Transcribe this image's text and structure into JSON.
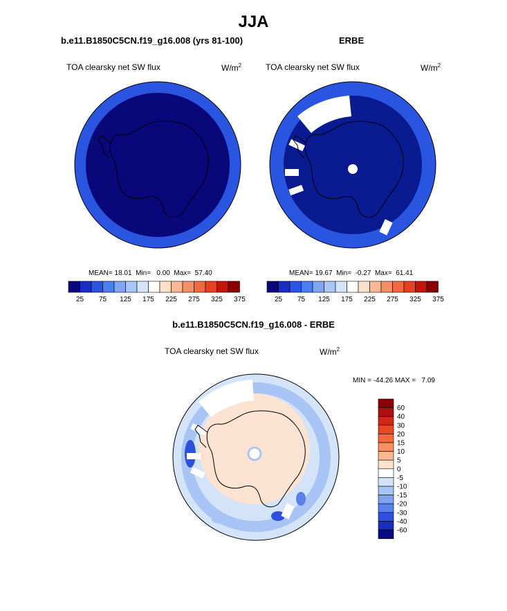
{
  "season": "JJA",
  "panel_left": {
    "case_title": "b.e11.B1850C5CN.f19_g16.008 (yrs 81-100)",
    "variable": "TOA clearsky net SW flux",
    "units_base": "W/m",
    "units_exp": "2",
    "stats": "MEAN= 18.01  Min=   0.00  Max=  57.40"
  },
  "panel_right": {
    "case_title": "ERBE",
    "variable": "TOA clearsky net SW flux",
    "units_base": "W/m",
    "units_exp": "2",
    "stats": "MEAN= 19.67  Min=  -0.27  Max=  61.41"
  },
  "panel_diff": {
    "case_title": "b.e11.B1850C5CN.f19_g16.008 - ERBE",
    "variable": "TOA clearsky net SW flux",
    "units_base": "W/m",
    "units_exp": "2",
    "stats": "MIN = -44.26 MAX =   7.09"
  },
  "colorbar_horizontal": {
    "colors": [
      "#08087a",
      "#1a2fc2",
      "#2a55e0",
      "#4a7ff0",
      "#7ea6f2",
      "#aac6f4",
      "#d4e4f8",
      "#ffffff",
      "#fde0c8",
      "#f8b898",
      "#f49068",
      "#ef6a40",
      "#e64020",
      "#c01808",
      "#8a0000"
    ],
    "labels": [
      "25",
      "75",
      "125",
      "175",
      "225",
      "275",
      "325",
      "375"
    ]
  },
  "colorbar_vertical": {
    "colors_top_to_bottom": [
      "#8a0000",
      "#b01010",
      "#d02818",
      "#e84820",
      "#f46a3a",
      "#f89060",
      "#fbb890",
      "#fde2cc",
      "#ffffff",
      "#d4e4f8",
      "#a8c4f4",
      "#7ea2f0",
      "#5a80ea",
      "#2f50dc",
      "#1a2fb8",
      "#0a0a80"
    ],
    "labels_top_to_bottom": [
      "60",
      "40",
      "30",
      "20",
      "15",
      "10",
      "5",
      "0",
      "-5",
      "-10",
      "-15",
      "-20",
      "-30",
      "-40",
      "-60"
    ]
  },
  "map_colors": {
    "model_inner": "#08087a",
    "model_ring": "#2a55e0",
    "obs_inner": "#0a1a90",
    "obs_ring": "#2a55e0",
    "diff_ice": "#fde4d2",
    "diff_ocean": "#d4e4f8",
    "diff_mid": "#a8c4f4",
    "diff_strong": "#2f50dc",
    "missing": "#ffffff",
    "coast": "#000000"
  }
}
